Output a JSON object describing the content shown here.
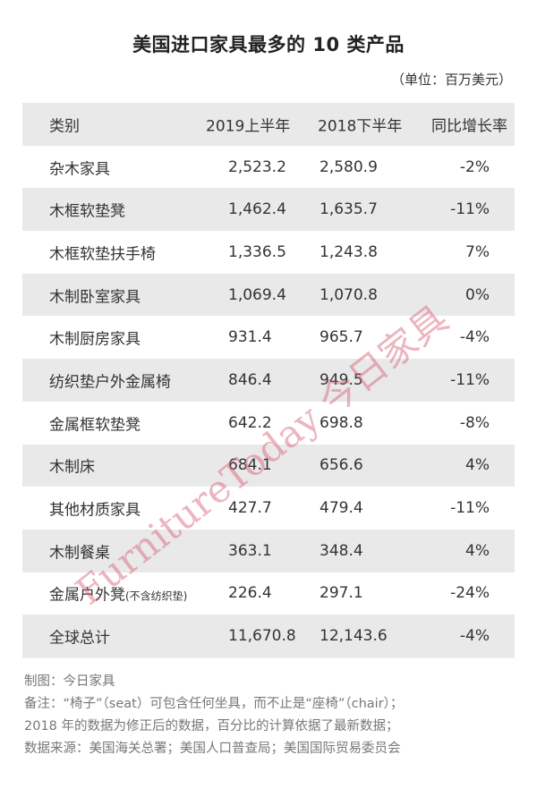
{
  "title": "美国进口家具最多的 10 类产品",
  "unit": "（单位：百万美元）",
  "table": {
    "headers": [
      "类别",
      "2019上半年",
      "2018下半年",
      "同比增长率"
    ],
    "rows": [
      {
        "category": "杂木家具",
        "note": "",
        "h1_2019": "2,523.2",
        "h2_2018": "2,580.9",
        "yoy": "-2%"
      },
      {
        "category": "木框软垫凳",
        "note": "",
        "h1_2019": "1,462.4",
        "h2_2018": "1,635.7",
        "yoy": "-11%"
      },
      {
        "category": "木框软垫扶手椅",
        "note": "",
        "h1_2019": "1,336.5",
        "h2_2018": "1,243.8",
        "yoy": "7%"
      },
      {
        "category": "木制卧室家具",
        "note": "",
        "h1_2019": "1,069.4",
        "h2_2018": "1,070.8",
        "yoy": "0%"
      },
      {
        "category": "木制厨房家具",
        "note": "",
        "h1_2019": "931.4",
        "h2_2018": "965.7",
        "yoy": "-4%"
      },
      {
        "category": "纺织垫户外金属椅",
        "note": "",
        "h1_2019": "846.4",
        "h2_2018": "949.5",
        "yoy": "-11%"
      },
      {
        "category": "金属框软垫凳",
        "note": "",
        "h1_2019": "642.2",
        "h2_2018": "698.8",
        "yoy": "-8%"
      },
      {
        "category": "木制床",
        "note": "",
        "h1_2019": "684.1",
        "h2_2018": "656.6",
        "yoy": "4%"
      },
      {
        "category": "其他材质家具",
        "note": "",
        "h1_2019": "427.7",
        "h2_2018": "479.4",
        "yoy": "-11%"
      },
      {
        "category": "木制餐桌",
        "note": "",
        "h1_2019": "363.1",
        "h2_2018": "348.4",
        "yoy": "4%"
      },
      {
        "category": "金属户外凳",
        "note": "(不含纺织垫)",
        "h1_2019": "226.4",
        "h2_2018": "297.1",
        "yoy": "-24%"
      },
      {
        "category": "全球总计",
        "note": "",
        "h1_2019": "11,670.8",
        "h2_2018": "12,143.6",
        "yoy": "-4%"
      }
    ]
  },
  "notes": [
    "制图：今日家具",
    "备注：“椅子”（seat）可包含任何坐具，而不止是“座椅”（chair）；",
    "2018 年的数据为修正后的数据，百分比的计算依据了最新数据；",
    "数据来源：美国海关总署；美国人口普查局；美国国际贸易委员会"
  ],
  "watermark": "FurnitureToday 今日家具",
  "colors": {
    "header_bg": "#e9e9e9",
    "stripe_bg": "#e9e9e9",
    "watermark": "#d65a6e"
  }
}
